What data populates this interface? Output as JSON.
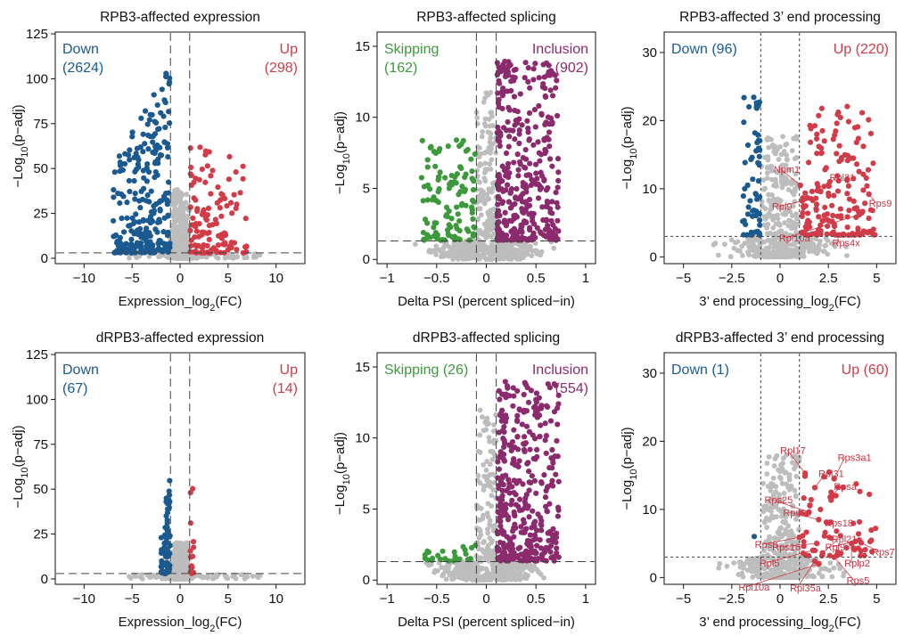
{
  "colors": {
    "down": "#1a5a91",
    "up": "#d23c48",
    "skip": "#3c9a3c",
    "incl": "#8c2a6e",
    "ns": "#bdbdbd"
  },
  "chart_data": [
    {
      "id": "p1",
      "type": "scatter",
      "kind": "expr",
      "title": "RPB3-affected expression",
      "xlabel": "Expression_log2(FC)",
      "ylabel": "−Log10(p−adj)",
      "xlim": [
        -13,
        13
      ],
      "ylim": [
        -3,
        126
      ],
      "xticks": [
        -10,
        -5,
        0,
        5,
        10
      ],
      "yticks": [
        0,
        25,
        50,
        75,
        100,
        125
      ],
      "vlines": [
        -1,
        1
      ],
      "hline": 3,
      "ann_left": [
        "Down",
        "(2624)"
      ],
      "ann_right": [
        "Up",
        "(298)"
      ],
      "spec": {
        "down": [
          2624,
          110
        ],
        "up": [
          298,
          62
        ],
        "xmin": -7,
        "xmax": 8
      }
    },
    {
      "id": "p2",
      "type": "scatter",
      "kind": "psi",
      "title": "RPB3-affected splicing",
      "xlabel": "Delta PSI (percent spliced−in)",
      "ylabel": "−Log10(p−adj)",
      "xlim": [
        -1.1,
        1.1
      ],
      "ylim": [
        -0.3,
        16
      ],
      "xticks": [
        -1,
        -0.5,
        0,
        0.5,
        1
      ],
      "yticks": [
        0,
        5,
        10,
        15
      ],
      "vlines": [
        -0.1,
        0.1
      ],
      "hline": 1.3,
      "ann_left": [
        "Skipping",
        "(162)"
      ],
      "ann_right": [
        "Inclusion",
        "(902)"
      ],
      "spec": {
        "down": [
          162,
          8.5
        ],
        "up": [
          902,
          14
        ]
      }
    },
    {
      "id": "p3",
      "type": "scatter",
      "kind": "end",
      "title": "RPB3-affected 3’ end processing",
      "xlabel": "3’ end processing_log2(FC)",
      "ylabel": "−Log10(p−adj)",
      "xlim": [
        -6,
        6
      ],
      "ylim": [
        -1,
        33
      ],
      "xticks": [
        -5,
        -2.5,
        0,
        2.5,
        5
      ],
      "yticks": [
        0,
        10,
        20,
        30
      ],
      "vlines": [
        -1,
        1
      ],
      "hline": 3,
      "ann_left": [
        "Down (96)"
      ],
      "ann_right": [
        "Up (220)"
      ],
      "spec": {
        "down": [
          96,
          24
        ],
        "up": [
          220,
          23
        ]
      },
      "genes": [
        {
          "name": "Npm1",
          "x": 1.05,
          "y": 10.5
        },
        {
          "name": "Rpl21",
          "x": 2.1,
          "y": 9.6
        },
        {
          "name": "Rpl9",
          "x": 1.15,
          "y": 8.2
        },
        {
          "name": "Rps9",
          "x": 4.6,
          "y": 9.2
        },
        {
          "name": "Rpl10a",
          "x": 4.1,
          "y": 6.2
        },
        {
          "name": "Rps4x",
          "x": 2.7,
          "y": 5.2
        }
      ]
    },
    {
      "id": "p4",
      "type": "scatter",
      "kind": "expr",
      "title": "dRPB3-affected expression",
      "xlabel": "Expression_log2(FC)",
      "ylabel": "−Log10(p−adj)",
      "xlim": [
        -13,
        13
      ],
      "ylim": [
        -3,
        126
      ],
      "xticks": [
        -10,
        -5,
        0,
        5,
        10
      ],
      "yticks": [
        0,
        25,
        50,
        75,
        100,
        125
      ],
      "vlines": [
        -1,
        1
      ],
      "hline": 3,
      "ann_left": [
        "Down",
        "(67)"
      ],
      "ann_right": [
        "Up",
        "(14)"
      ],
      "spec": {
        "down": [
          67,
          58
        ],
        "up": [
          14,
          68
        ],
        "xmin": -2,
        "xmax": 1.5
      }
    },
    {
      "id": "p5",
      "type": "scatter",
      "kind": "psi",
      "title": "dRPB3-affected splicing",
      "xlabel": "Delta PSI (percent spliced−in)",
      "ylabel": "−Log10(p−adj)",
      "xlim": [
        -1.1,
        1.1
      ],
      "ylim": [
        -0.3,
        16
      ],
      "xticks": [
        -1,
        -0.5,
        0,
        0.5,
        1
      ],
      "yticks": [
        0,
        5,
        10,
        15
      ],
      "vlines": [
        -0.1,
        0.1
      ],
      "hline": 1.3,
      "ann_left": [
        "Skipping (26)"
      ],
      "ann_right": [
        "Inclusion",
        "(554)"
      ],
      "spec": {
        "down": [
          26,
          2.5
        ],
        "up": [
          554,
          14
        ]
      }
    },
    {
      "id": "p6",
      "type": "scatter",
      "kind": "end",
      "title": "dRPB3-affected 3’ end processing",
      "xlabel": "3’ end processing_log2(FC)",
      "ylabel": "−Log10(p−adj)",
      "xlim": [
        -6,
        6
      ],
      "ylim": [
        -1,
        33
      ],
      "xticks": [
        -5,
        -2.5,
        0,
        2.5,
        5
      ],
      "yticks": [
        0,
        10,
        20,
        30
      ],
      "vlines": [
        -1,
        1
      ],
      "hline": 3,
      "ann_left": [
        "Down (1)"
      ],
      "ann_right": [
        "Up (60)"
      ],
      "spec": {
        "down": [
          1,
          9
        ],
        "up": [
          60,
          15.5
        ]
      },
      "genes": [
        {
          "name": "Rpl17",
          "x": 1.3,
          "y": 15.3
        },
        {
          "name": "Rpl31",
          "x": 1.8,
          "y": 13.2
        },
        {
          "name": "Rps3a1",
          "x": 2.8,
          "y": 14.5
        },
        {
          "name": "Rpsa",
          "x": 2.6,
          "y": 11.8
        },
        {
          "name": "Rps25",
          "x": 1.5,
          "y": 9.6
        },
        {
          "name": "Rps19",
          "x": 2.0,
          "y": 8.5
        },
        {
          "name": "Rps18",
          "x": 2.5,
          "y": 8.0
        },
        {
          "name": "Rpl9",
          "x": 3.9,
          "y": 5.3
        },
        {
          "name": "Rps8",
          "x": 1.0,
          "y": 5.9
        },
        {
          "name": "Rps16",
          "x": 1.9,
          "y": 5.0
        },
        {
          "name": "Rps7",
          "x": 4.2,
          "y": 5.1
        },
        {
          "name": "Rpl5",
          "x": 1.7,
          "y": 4.0
        },
        {
          "name": "Rpl21",
          "x": 2.2,
          "y": 3.6
        },
        {
          "name": "Rplp2",
          "x": 3.7,
          "y": 5.0
        },
        {
          "name": "Rpl10a",
          "x": 2.0,
          "y": 2.0
        },
        {
          "name": "Rpl35a",
          "x": 1.8,
          "y": 2.4
        },
        {
          "name": "Rps5",
          "x": 2.8,
          "y": 3.0
        }
      ]
    }
  ]
}
